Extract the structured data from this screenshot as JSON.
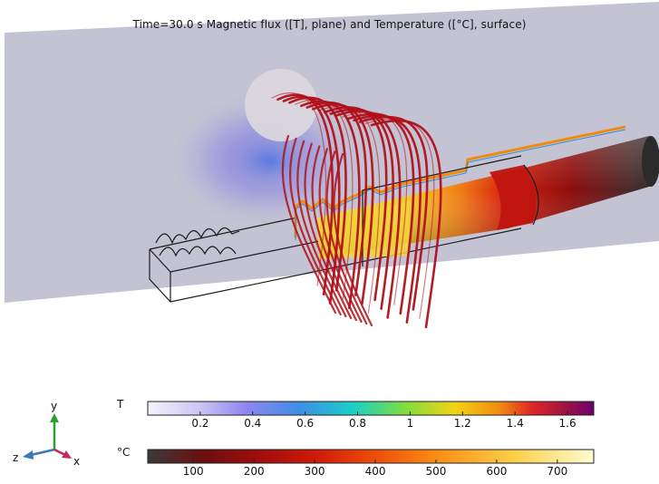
{
  "title": "Time=30.0 s Magnetic flux ([T], plane) and Temperature ([°C], surface)",
  "chart_data": [
    {
      "type": "colorbar",
      "unit_label": "T",
      "range": [
        0.0,
        1.7
      ],
      "ticks": [
        0.2,
        0.4,
        0.6,
        0.8,
        1,
        1.2,
        1.4,
        1.6
      ],
      "tick_labels": [
        "0.2",
        "0.4",
        "0.6",
        "0.8",
        "1",
        "1.2",
        "1.4",
        "1.6"
      ],
      "colormap": [
        "#f4f3f8",
        "#9a8ff0",
        "#2a8ee0",
        "#18d6c2",
        "#7fdc3a",
        "#f4cc14",
        "#f08a10",
        "#e02424",
        "#a0163e",
        "#6b006e"
      ]
    },
    {
      "type": "colorbar",
      "unit_label": "°C",
      "range": [
        25,
        760
      ],
      "ticks": [
        100,
        200,
        300,
        400,
        500,
        600,
        700
      ],
      "tick_labels": [
        "100",
        "200",
        "300",
        "400",
        "500",
        "600",
        "700"
      ],
      "colormap": [
        "#3b3b3b",
        "#7a0a0a",
        "#b51010",
        "#e12a0a",
        "#f5620a",
        "#fa9a18",
        "#fcd24a",
        "#fff8c8"
      ]
    }
  ],
  "axes_triad": {
    "x": "x",
    "y": "y",
    "z": "z"
  },
  "colors": {
    "flux_line": "#b0101a",
    "plane": "#c4c3d3",
    "hot": "#f7dd35",
    "cold": "#3a3a3a"
  }
}
